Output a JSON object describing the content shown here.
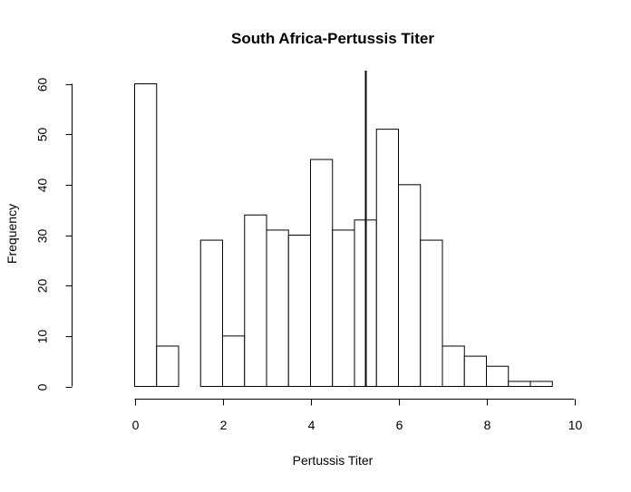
{
  "chart_data": {
    "type": "bar",
    "title": "South Africa-Pertussis Titer",
    "xlabel": "Pertussis Titer",
    "ylabel": "Frequency",
    "bin_width": 0.5,
    "bins": [
      {
        "start": 0.0,
        "end": 0.5,
        "count": 60
      },
      {
        "start": 0.5,
        "end": 1.0,
        "count": 8
      },
      {
        "start": 1.0,
        "end": 1.5,
        "count": 0
      },
      {
        "start": 1.5,
        "end": 2.0,
        "count": 29
      },
      {
        "start": 2.0,
        "end": 2.5,
        "count": 10
      },
      {
        "start": 2.5,
        "end": 3.0,
        "count": 34
      },
      {
        "start": 3.0,
        "end": 3.5,
        "count": 31
      },
      {
        "start": 3.5,
        "end": 4.0,
        "count": 30
      },
      {
        "start": 4.0,
        "end": 4.5,
        "count": 45
      },
      {
        "start": 4.5,
        "end": 5.0,
        "count": 31
      },
      {
        "start": 5.0,
        "end": 5.5,
        "count": 33
      },
      {
        "start": 5.5,
        "end": 6.0,
        "count": 51
      },
      {
        "start": 6.0,
        "end": 6.5,
        "count": 40
      },
      {
        "start": 6.5,
        "end": 7.0,
        "count": 29
      },
      {
        "start": 7.0,
        "end": 7.5,
        "count": 8
      },
      {
        "start": 7.5,
        "end": 8.0,
        "count": 6
      },
      {
        "start": 8.0,
        "end": 8.5,
        "count": 4
      },
      {
        "start": 8.5,
        "end": 9.0,
        "count": 1
      },
      {
        "start": 9.0,
        "end": 9.5,
        "count": 1
      }
    ],
    "reference_line": {
      "x": 5.24
    },
    "xlim": [
      0,
      10
    ],
    "ylim": [
      0,
      60
    ],
    "x_ticks": [
      "0",
      "2",
      "4",
      "6",
      "8",
      "10"
    ],
    "y_ticks": [
      "0",
      "10",
      "20",
      "30",
      "40",
      "50",
      "60"
    ],
    "grid": false,
    "colors": {
      "bar_fill": "#ffffff",
      "bar_stroke": "#000000",
      "reference_line": "#000000",
      "background": "#ffffff"
    }
  }
}
